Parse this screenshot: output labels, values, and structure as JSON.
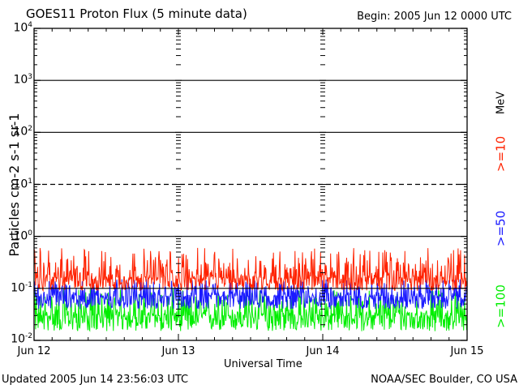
{
  "header": {
    "title": "GOES11 Proton Flux (5 minute data)",
    "begin": "Begin: 2005 Jun 12 0000 UTC"
  },
  "footer": {
    "updated": "Updated 2005 Jun 14 23:56:03 UTC",
    "credit": "NOAA/SEC Boulder, CO USA"
  },
  "right_labels": {
    "unit": "MeV",
    "ch10": ">=10",
    "ch50": ">=50",
    "ch100": ">=100"
  },
  "colors": {
    "ch10": "#ff2200",
    "ch50": "#1a1aff",
    "ch100": "#00ee00",
    "axis": "#000000"
  },
  "chart_data": {
    "type": "line",
    "title": "GOES11 Proton Flux (5 minute data)",
    "xlabel": "Universal Time",
    "ylabel": "Particles cm-2 s-1 sr-1",
    "y_scale": "log",
    "ylim": [
      0.01,
      10000
    ],
    "y_ticks": [
      {
        "value": 0.01,
        "base": "10",
        "exp": "-2"
      },
      {
        "value": 0.1,
        "base": "10",
        "exp": "-1"
      },
      {
        "value": 1,
        "base": "10",
        "exp": "0"
      },
      {
        "value": 10,
        "base": "10",
        "exp": "1"
      },
      {
        "value": 100,
        "base": "10",
        "exp": "2"
      },
      {
        "value": 1000,
        "base": "10",
        "exp": "3"
      },
      {
        "value": 10000,
        "base": "10",
        "exp": "4"
      }
    ],
    "x_range": [
      "2005-06-12 00:00",
      "2005-06-15 00:00"
    ],
    "x_ticks": [
      {
        "value": "2005-06-12 00:00",
        "label": "Jun 12"
      },
      {
        "value": "2005-06-13 00:00",
        "label": "Jun 13"
      },
      {
        "value": "2005-06-14 00:00",
        "label": "Jun 14"
      },
      {
        "value": "2005-06-15 00:00",
        "label": "Jun 15"
      }
    ],
    "reference_lines": [
      {
        "value": 1000,
        "style": "solid"
      },
      {
        "value": 100,
        "style": "solid"
      },
      {
        "value": 10,
        "style": "dashed"
      },
      {
        "value": 1,
        "style": "solid"
      },
      {
        "value": 0.1,
        "style": "solid"
      }
    ],
    "series": [
      {
        "name": ">=10 MeV",
        "color": "#ff2200",
        "typical": 0.16,
        "range": [
          0.09,
          0.6
        ]
      },
      {
        "name": ">=50 MeV",
        "color": "#1a1aff",
        "typical": 0.07,
        "range": [
          0.04,
          0.15
        ]
      },
      {
        "name": ">=100 MeV",
        "color": "#00ee00",
        "typical": 0.03,
        "range": [
          0.015,
          0.1
        ]
      }
    ]
  }
}
